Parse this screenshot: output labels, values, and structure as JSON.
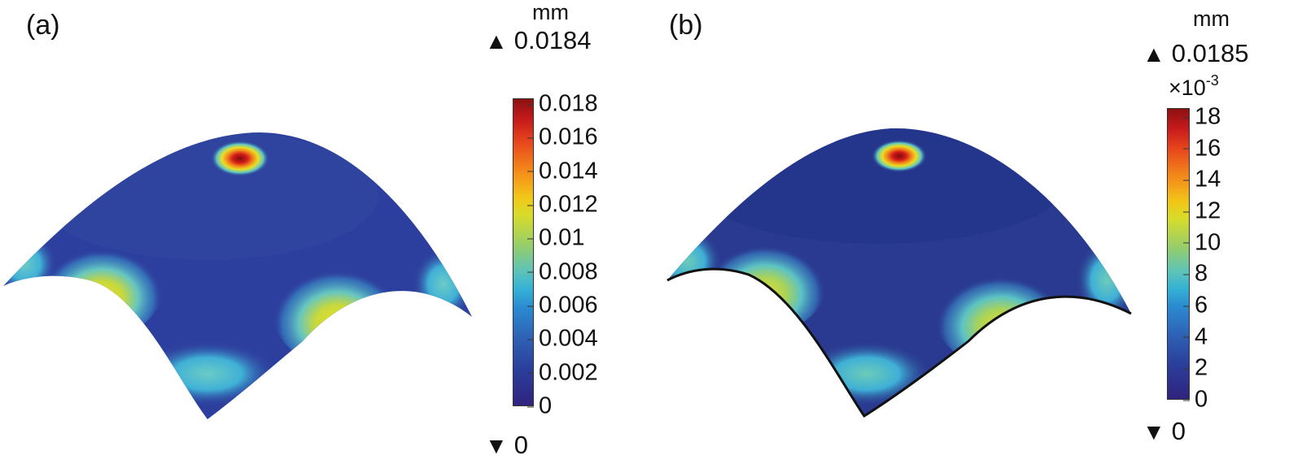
{
  "panel_a": {
    "label": "(a)",
    "unit": "mm",
    "max_label": "0.0184",
    "min_label": "0",
    "max_symbol": "▲",
    "min_symbol": "▼",
    "colorbar_ticks": [
      "0.018",
      "0.016",
      "0.014",
      "0.012",
      "0.01",
      "0.008",
      "0.006",
      "0.004",
      "0.002",
      "0"
    ]
  },
  "panel_b": {
    "label": "(b)",
    "unit": "mm",
    "max_label": "0.0185",
    "multiplier_base": "×10",
    "multiplier_exp": "-3",
    "min_label": "0",
    "max_symbol": "▲",
    "min_symbol": "▼",
    "colorbar_ticks": [
      "18",
      "16",
      "14",
      "12",
      "10",
      "8",
      "6",
      "4",
      "2",
      "0"
    ]
  },
  "colors": {
    "low": "#2d3f9e",
    "mid": "#35b1d6",
    "high_yellow": "#e6e024",
    "peak": "#c01515"
  }
}
